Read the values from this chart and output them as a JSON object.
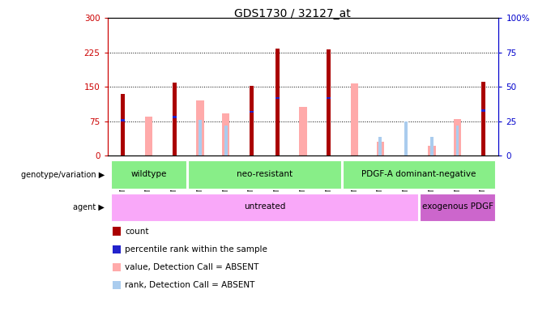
{
  "title": "GDS1730 / 32127_at",
  "samples": [
    "GSM34592",
    "GSM34593",
    "GSM34594",
    "GSM34580",
    "GSM34581",
    "GSM34582",
    "GSM34583",
    "GSM34584",
    "GSM34585",
    "GSM34586",
    "GSM34587",
    "GSM34588",
    "GSM34589",
    "GSM34590",
    "GSM34591"
  ],
  "count": [
    135,
    0,
    160,
    0,
    0,
    153,
    233,
    0,
    232,
    0,
    0,
    0,
    0,
    0,
    162
  ],
  "percentile_rank": [
    26,
    0,
    28,
    0,
    0,
    32,
    42,
    0,
    42,
    0,
    0,
    0,
    0,
    0,
    33
  ],
  "value_absent": [
    0,
    85,
    0,
    120,
    93,
    0,
    0,
    107,
    0,
    158,
    30,
    0,
    22,
    80,
    0
  ],
  "rank_absent": [
    0,
    0,
    0,
    26,
    22,
    0,
    25,
    0,
    0,
    0,
    14,
    25,
    14,
    22,
    0
  ],
  "genotype_groups": [
    {
      "label": "wildtype",
      "start": 0,
      "end": 3
    },
    {
      "label": "neo-resistant",
      "start": 3,
      "end": 9
    },
    {
      "label": "PDGF-A dominant-negative",
      "start": 9,
      "end": 15
    }
  ],
  "agent_groups": [
    {
      "label": "untreated",
      "start": 0,
      "end": 12,
      "color": "#f9a8f9"
    },
    {
      "label": "exogenous PDGF",
      "start": 12,
      "end": 15,
      "color": "#cc66cc"
    }
  ],
  "ylim_left": [
    0,
    300
  ],
  "ylim_right": [
    0,
    100
  ],
  "yticks_left": [
    0,
    75,
    150,
    225,
    300
  ],
  "yticks_right": [
    0,
    25,
    50,
    75,
    100
  ],
  "count_color": "#aa0000",
  "percentile_color": "#2222cc",
  "value_absent_color": "#ffaaaa",
  "rank_absent_color": "#aaccee",
  "geno_color": "#88ee88",
  "left_spine_color": "#cc0000",
  "right_spine_color": "#0000cc"
}
